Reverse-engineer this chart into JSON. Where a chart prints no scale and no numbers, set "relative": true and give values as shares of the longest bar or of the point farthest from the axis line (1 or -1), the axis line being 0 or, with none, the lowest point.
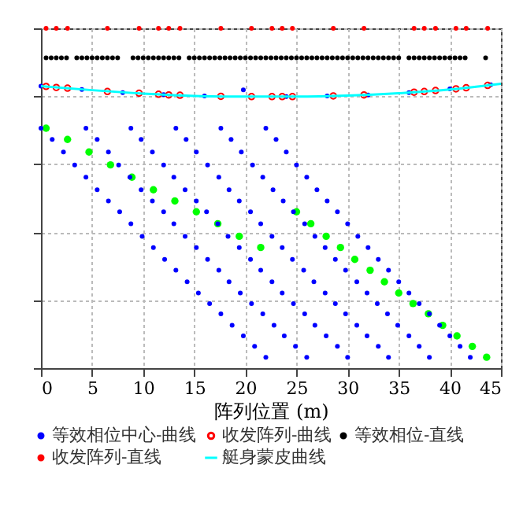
{
  "chart_data": {
    "type": "scatter",
    "relative": true,
    "xlabel": "阵列位置 (m)",
    "xlim": [
      0,
      45
    ],
    "xticks": [
      0,
      5,
      10,
      15,
      20,
      25,
      30,
      35,
      40,
      45
    ],
    "grid": true,
    "legend": "bottom",
    "series": [
      {
        "name": "等效相位中心-曲线",
        "color": "#0000ff",
        "x": [
          0,
          4,
          8,
          12,
          16,
          19.8,
          24,
          28,
          32,
          36,
          40,
          44,
          0,
          4.4,
          8.8,
          13.2,
          17.6,
          22,
          1.1,
          5.5,
          9.8,
          14.2,
          18.6,
          23,
          2.2,
          6.6,
          10.9,
          15.2,
          19.6,
          24,
          3.3,
          7.6,
          12,
          16.3,
          20.7,
          25,
          4.4,
          8.7,
          13,
          17.4,
          21.7,
          26,
          5.5,
          9.8,
          14.1,
          18.4,
          22.7,
          27,
          6.6,
          10.9,
          15.2,
          19.4,
          23.7,
          28,
          7.7,
          12,
          16.2,
          20.5,
          24.7,
          29,
          8.8,
          13,
          17.3,
          21.5,
          25.8,
          30,
          9.9,
          14.1,
          18.3,
          22.6,
          26.8,
          31,
          11,
          15.2,
          19.4,
          23.6,
          27.8,
          32,
          12.1,
          16.3,
          20.5,
          24.6,
          28.8,
          33,
          13.2,
          17.4,
          21.5,
          25.7,
          29.8,
          34,
          14.3,
          18.4,
          22.6,
          26.7,
          30.9,
          35,
          15.4,
          19.5,
          23.6,
          27.8,
          31.9,
          36,
          16.5,
          20.6,
          24.7,
          28.8,
          32.9,
          37,
          17.6,
          21.7,
          25.8,
          29.8,
          33.9,
          38,
          18.7,
          22.8,
          26.8,
          30.9,
          34.9,
          39,
          19.8,
          23.8,
          27.9,
          31.9,
          36,
          40,
          20.9,
          24.9,
          29,
          33,
          37,
          41,
          22,
          26,
          30,
          34,
          38,
          42
        ],
        "values": [
          0.83,
          0.82,
          0.811,
          0.805,
          0.801,
          0.819,
          0.799,
          0.801,
          0.804,
          0.811,
          0.822,
          0.834,
          0.706,
          0.706,
          0.706,
          0.706,
          0.706,
          0.706,
          0.673,
          0.673,
          0.673,
          0.673,
          0.673,
          0.673,
          0.636,
          0.636,
          0.636,
          0.636,
          0.636,
          0.636,
          0.598,
          0.598,
          0.598,
          0.598,
          0.598,
          0.598,
          0.562,
          0.562,
          0.562,
          0.562,
          0.562,
          0.562,
          0.525,
          0.525,
          0.525,
          0.525,
          0.525,
          0.525,
          0.492,
          0.492,
          0.492,
          0.492,
          0.492,
          0.492,
          0.46,
          0.46,
          0.46,
          0.46,
          0.46,
          0.46,
          0.425,
          0.425,
          0.425,
          0.425,
          0.425,
          0.425,
          0.388,
          0.388,
          0.388,
          0.388,
          0.388,
          0.388,
          0.355,
          0.355,
          0.355,
          0.355,
          0.355,
          0.355,
          0.32,
          0.32,
          0.32,
          0.32,
          0.32,
          0.32,
          0.288,
          0.288,
          0.288,
          0.288,
          0.288,
          0.288,
          0.254,
          0.254,
          0.254,
          0.254,
          0.254,
          0.254,
          0.221,
          0.221,
          0.221,
          0.221,
          0.221,
          0.221,
          0.19,
          0.19,
          0.19,
          0.19,
          0.19,
          0.19,
          0.16,
          0.16,
          0.16,
          0.16,
          0.16,
          0.16,
          0.126,
          0.126,
          0.126,
          0.126,
          0.126,
          0.126,
          0.095,
          0.095,
          0.095,
          0.095,
          0.095,
          0.095,
          0.064,
          0.064,
          0.064,
          0.064,
          0.064,
          0.064,
          0.032,
          0.032,
          0.032,
          0.032,
          0.032,
          0.032
        ]
      },
      {
        "name": "收发阵列-曲线",
        "color": "#ff0000",
        "marker": "circle",
        "x": [
          0.5,
          1.5,
          2.6,
          6.5,
          9.6,
          11.5,
          12.5,
          13.6,
          17.6,
          20.6,
          22.6,
          23.6,
          24.6,
          28.6,
          31.6,
          36.5,
          37.5,
          38.6,
          40.6,
          41.6,
          43.7
        ],
        "values": [
          0.829,
          0.826,
          0.824,
          0.814,
          0.809,
          0.806,
          0.804,
          0.803,
          0.8,
          0.799,
          0.799,
          0.799,
          0.799,
          0.801,
          0.804,
          0.812,
          0.814,
          0.817,
          0.822,
          0.825,
          0.832
        ]
      },
      {
        "name": "等效相位-直线",
        "color": "#000000",
        "x": [
          0.5,
          1,
          1.5,
          2,
          2.5,
          3.5,
          4,
          4.5,
          5,
          5.5,
          6,
          6.5,
          7,
          7.5,
          9,
          9.5,
          10,
          10.5,
          11,
          11.5,
          12,
          12.5,
          13,
          13.5,
          14.5,
          15,
          15.5,
          16,
          16.5,
          17,
          17.5,
          18,
          18.5,
          19,
          19.5,
          20,
          20.5,
          21,
          21.5,
          22,
          22.5,
          23,
          23.5,
          24,
          24.5,
          25,
          25.5,
          26,
          26.5,
          27,
          27.5,
          28,
          28.5,
          29,
          29.5,
          30,
          30.5,
          31,
          31.5,
          32,
          32.5,
          33,
          33.5,
          34,
          34.5,
          35,
          36,
          36.5,
          37,
          37.5,
          38,
          38.5,
          39,
          39.5,
          40,
          40.5,
          41,
          41.5,
          43.5
        ],
        "values": [
          0.913,
          0.913,
          0.913,
          0.913,
          0.913,
          0.913,
          0.913,
          0.913,
          0.913,
          0.913,
          0.913,
          0.913,
          0.913,
          0.913,
          0.913,
          0.913,
          0.913,
          0.913,
          0.913,
          0.913,
          0.913,
          0.913,
          0.913,
          0.913,
          0.913,
          0.913,
          0.913,
          0.913,
          0.913,
          0.913,
          0.913,
          0.913,
          0.913,
          0.913,
          0.913,
          0.913,
          0.913,
          0.913,
          0.913,
          0.913,
          0.913,
          0.913,
          0.913,
          0.913,
          0.913,
          0.913,
          0.913,
          0.913,
          0.913,
          0.913,
          0.913,
          0.913,
          0.913,
          0.913,
          0.913,
          0.913,
          0.913,
          0.913,
          0.913,
          0.913,
          0.913,
          0.913,
          0.913,
          0.913,
          0.913,
          0.913,
          0.913,
          0.913,
          0.913,
          0.913,
          0.913,
          0.913,
          0.913,
          0.913,
          0.913,
          0.913,
          0.913,
          0.913,
          0.913
        ]
      },
      {
        "name": "收发阵列-直线",
        "color": "#ff0000",
        "x": [
          0.5,
          1.5,
          2.6,
          6.5,
          9.6,
          11.5,
          12.5,
          13.6,
          17.6,
          20.6,
          22.6,
          23.6,
          24.6,
          28.6,
          31.6,
          36.5,
          37.5,
          38.6,
          40.6,
          41.6,
          43.7
        ],
        "values": [
          1,
          1,
          1,
          1,
          1,
          1,
          1,
          1,
          1,
          1,
          1,
          1,
          1,
          1,
          1,
          1,
          1,
          1,
          1,
          1,
          1
        ]
      },
      {
        "name": "艇身蒙皮曲线",
        "type": "line",
        "color": "#00ffff",
        "x": [
          0,
          5,
          10,
          15,
          20,
          25,
          30,
          35,
          40,
          45
        ],
        "values": [
          0.83,
          0.818,
          0.808,
          0.801,
          0.799,
          0.799,
          0.802,
          0.809,
          0.82,
          0.837
        ]
      },
      {
        "color": "#00ff00",
        "x": [
          0.5,
          2.6,
          4.7,
          6.8,
          8.9,
          11,
          13.1,
          15.2,
          17.3,
          19.4,
          21.5,
          25,
          26.4,
          27.9,
          29.3,
          30.7,
          32.2,
          33.6,
          35,
          36.4,
          37.9,
          39.3,
          40.7,
          42.2,
          43.6
        ],
        "values": [
          0.706,
          0.673,
          0.636,
          0.598,
          0.562,
          0.525,
          0.492,
          0.46,
          0.425,
          0.388,
          0.355,
          0.46,
          0.425,
          0.388,
          0.355,
          0.32,
          0.288,
          0.254,
          0.221,
          0.19,
          0.16,
          0.126,
          0.095,
          0.064,
          0.032
        ]
      }
    ]
  }
}
